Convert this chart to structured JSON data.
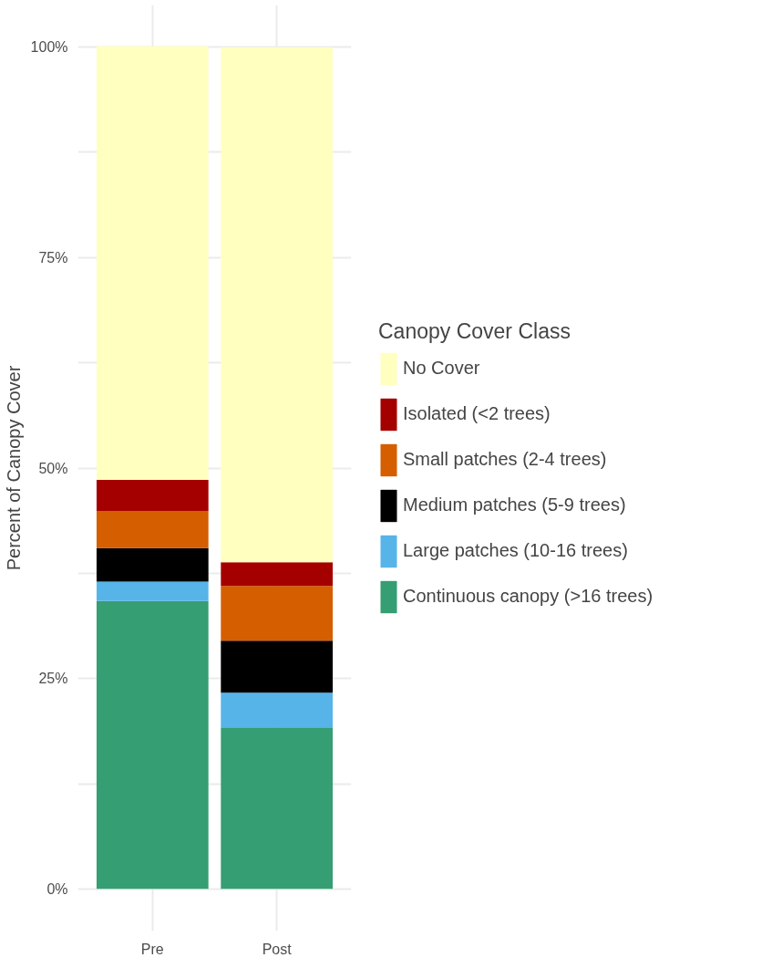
{
  "chart_data": {
    "type": "bar",
    "stacked": true,
    "categories": [
      "Pre",
      "Post"
    ],
    "ylabel": "Percent of Canopy Cover",
    "legend_title": "Canopy Cover Class",
    "legend": "right",
    "grid": true,
    "ylim": [
      -5,
      105
    ],
    "yticks": [
      {
        "value": 0,
        "label": "0%"
      },
      {
        "value": 12.5,
        "label": null
      },
      {
        "value": 25,
        "label": "25%"
      },
      {
        "value": 37.5,
        "label": null
      },
      {
        "value": 50,
        "label": "50%"
      },
      {
        "value": 62.5,
        "label": null
      },
      {
        "value": 75,
        "label": "75%"
      },
      {
        "value": 87.5,
        "label": null
      },
      {
        "value": 100,
        "label": "100%"
      }
    ],
    "series": [
      {
        "name": "Continuous canopy (>16 trees)",
        "color": "#359e73",
        "values": [
          34.2,
          19.2
        ]
      },
      {
        "name": "Large patches (10-16 trees)",
        "color": "#56b4e9",
        "values": [
          2.3,
          4.1
        ]
      },
      {
        "name": "Medium patches (5-9 trees)",
        "color": "#000000",
        "values": [
          4.0,
          6.2
        ]
      },
      {
        "name": "Small patches (2-4 trees)",
        "color": "#d55e00",
        "values": [
          4.4,
          6.5
        ]
      },
      {
        "name": "Isolated (<2 trees)",
        "color": "#a50000",
        "values": [
          3.7,
          2.8
        ]
      },
      {
        "name": "No Cover",
        "color": "#ffffc0",
        "values": [
          51.5,
          61.2
        ]
      }
    ]
  }
}
